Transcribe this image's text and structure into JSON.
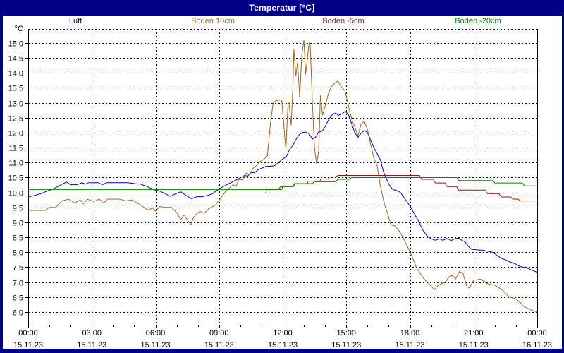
{
  "window": {
    "title": "Temperatur [°C]"
  },
  "chart_data": {
    "type": "line",
    "title": "Temperatur [°C]",
    "ylabel": "°C",
    "grid": "dashed",
    "legend_position": "top",
    "ylim": [
      5.58,
      15.47
    ],
    "xlim_hours": [
      0,
      24
    ],
    "y_tick_labels": [
      "15,0",
      "14,5",
      "14,0",
      "13,5",
      "13,0",
      "12,5",
      "12,0",
      "11,5",
      "11,0",
      "10,5",
      "10,0",
      "9,5",
      "9,0",
      "8,5",
      "8,0",
      "7,5",
      "7,0",
      "6,5",
      "6,0"
    ],
    "x_ticks": [
      {
        "t": 0,
        "time": "00:00",
        "date": "15.11.23"
      },
      {
        "t": 3,
        "time": "03:00",
        "date": "15.11.23"
      },
      {
        "t": 6,
        "time": "06:00",
        "date": "15.11.23"
      },
      {
        "t": 9,
        "time": "09:00",
        "date": "15.11.23"
      },
      {
        "t": 12,
        "time": "12:00",
        "date": "15.11.23"
      },
      {
        "t": 15,
        "time": "15:00",
        "date": "15.11.23"
      },
      {
        "t": 18,
        "time": "18:00",
        "date": "15.11.23"
      },
      {
        "t": 21,
        "time": "21:00",
        "date": "15.11.23"
      },
      {
        "t": 24,
        "time": "00:00",
        "date": "16.11.23"
      }
    ],
    "series": [
      {
        "name": "Luft",
        "color": "#0000D0",
        "points": [
          [
            0,
            9.85
          ],
          [
            0.3,
            9.9
          ],
          [
            0.6,
            9.96
          ],
          [
            0.9,
            10.05
          ],
          [
            1.1,
            10.1
          ],
          [
            1.4,
            10.2
          ],
          [
            1.6,
            10.28
          ],
          [
            1.8,
            10.35
          ],
          [
            2,
            10.26
          ],
          [
            2.3,
            10.26
          ],
          [
            2.55,
            10.33
          ],
          [
            2.7,
            10.28
          ],
          [
            2.85,
            10.33
          ],
          [
            3.3,
            10.33
          ],
          [
            3.5,
            10.26
          ],
          [
            3.7,
            10.33
          ],
          [
            4.7,
            10.33
          ],
          [
            5,
            10.3
          ],
          [
            5.3,
            10.28
          ],
          [
            5.6,
            10.2
          ],
          [
            5.9,
            10.1
          ],
          [
            6.2,
            10.05
          ],
          [
            6.5,
            9.95
          ],
          [
            6.7,
            9.87
          ],
          [
            7,
            9.97
          ],
          [
            7.2,
            10.02
          ],
          [
            7.45,
            9.9
          ],
          [
            7.7,
            9.79
          ],
          [
            7.95,
            9.86
          ],
          [
            8.2,
            9.86
          ],
          [
            8.45,
            9.9
          ],
          [
            8.67,
            9.95
          ],
          [
            9,
            10.12
          ],
          [
            9.33,
            10.25
          ],
          [
            9.67,
            10.37
          ],
          [
            10,
            10.49
          ],
          [
            10.2,
            10.57
          ],
          [
            10.35,
            10.55
          ],
          [
            10.5,
            10.67
          ],
          [
            10.67,
            10.66
          ],
          [
            10.85,
            10.77
          ],
          [
            11,
            10.81
          ],
          [
            11.2,
            10.87
          ],
          [
            11.6,
            10.89
          ],
          [
            11.8,
            11
          ],
          [
            12,
            11.12
          ],
          [
            12.17,
            11.2
          ],
          [
            12.33,
            11.44
          ],
          [
            12.5,
            11.6
          ],
          [
            12.67,
            11.83
          ],
          [
            12.8,
            11.95
          ],
          [
            12.95,
            12.01
          ],
          [
            13.1,
            12.02
          ],
          [
            13.25,
            11.96
          ],
          [
            13.4,
            11.79
          ],
          [
            13.55,
            11.85
          ],
          [
            13.7,
            12.03
          ],
          [
            13.85,
            12.05
          ],
          [
            14,
            12.2
          ],
          [
            14.15,
            12.42
          ],
          [
            14.35,
            12.62
          ],
          [
            14.5,
            12.66
          ],
          [
            14.62,
            12.58
          ],
          [
            14.8,
            12.63
          ],
          [
            14.95,
            12.72
          ],
          [
            15.1,
            12.6
          ],
          [
            15.25,
            12.3
          ],
          [
            15.4,
            12
          ],
          [
            15.55,
            11.85
          ],
          [
            15.7,
            11.98
          ],
          [
            15.85,
            12.08
          ],
          [
            16,
            12
          ],
          [
            16.15,
            11.75
          ],
          [
            16.3,
            11.5
          ],
          [
            16.45,
            11.3
          ],
          [
            16.6,
            11.1
          ],
          [
            16.75,
            10.7
          ],
          [
            16.9,
            10.44
          ],
          [
            17.05,
            10.22
          ],
          [
            17.2,
            10.1
          ],
          [
            17.4,
            10.06
          ],
          [
            17.55,
            10
          ],
          [
            17.7,
            9.85
          ],
          [
            17.85,
            9.7
          ],
          [
            18,
            9.55
          ],
          [
            18.2,
            9.3
          ],
          [
            18.4,
            9.05
          ],
          [
            18.6,
            8.75
          ],
          [
            18.8,
            8.55
          ],
          [
            19,
            8.45
          ],
          [
            19.2,
            8.4
          ],
          [
            19.4,
            8.45
          ],
          [
            19.55,
            8.4
          ],
          [
            19.75,
            8.46
          ],
          [
            19.95,
            8.4
          ],
          [
            20.15,
            8.46
          ],
          [
            20.3,
            8.47
          ],
          [
            20.45,
            8.4
          ],
          [
            20.6,
            8.35
          ],
          [
            20.75,
            8.2
          ],
          [
            20.9,
            8.1
          ],
          [
            21.2,
            8.08
          ],
          [
            21.5,
            8.06
          ],
          [
            21.9,
            8
          ],
          [
            22.1,
            7.9
          ],
          [
            22.3,
            7.8
          ],
          [
            22.5,
            7.75
          ],
          [
            22.7,
            7.68
          ],
          [
            23,
            7.6
          ],
          [
            23.2,
            7.52
          ],
          [
            23.5,
            7.48
          ],
          [
            23.7,
            7.42
          ],
          [
            24,
            7.33
          ]
        ]
      },
      {
        "name": "Boden 10cm",
        "color": "#9C6428",
        "points": [
          [
            0,
            9.4
          ],
          [
            0.8,
            9.4
          ],
          [
            0.9,
            9.45
          ],
          [
            1,
            9.5
          ],
          [
            1.3,
            9.5
          ],
          [
            1.6,
            9.72
          ],
          [
            1.9,
            9.78
          ],
          [
            2.2,
            9.65
          ],
          [
            2.45,
            9.75
          ],
          [
            2.6,
            9.62
          ],
          [
            2.8,
            9.77
          ],
          [
            3.1,
            9.7
          ],
          [
            3.35,
            9.78
          ],
          [
            3.55,
            9.65
          ],
          [
            3.75,
            9.78
          ],
          [
            4.3,
            9.78
          ],
          [
            4.6,
            9.72
          ],
          [
            4.9,
            9.75
          ],
          [
            5.15,
            9.65
          ],
          [
            5.35,
            9.56
          ],
          [
            5.55,
            9.45
          ],
          [
            5.7,
            9.41
          ],
          [
            5.85,
            9.49
          ],
          [
            6,
            9.37
          ],
          [
            6.2,
            9.53
          ],
          [
            6.45,
            9.5
          ],
          [
            6.75,
            9.5
          ],
          [
            7,
            9.33
          ],
          [
            7.2,
            9.09
          ],
          [
            7.35,
            9.25
          ],
          [
            7.5,
            9.09
          ],
          [
            7.67,
            8.93
          ],
          [
            7.8,
            9.17
          ],
          [
            7.95,
            9.29
          ],
          [
            8.1,
            9.37
          ],
          [
            8.3,
            9.3
          ],
          [
            8.5,
            9.45
          ],
          [
            8.83,
            9.58
          ],
          [
            9.17,
            9.9
          ],
          [
            9.33,
            10.06
          ],
          [
            9.67,
            10.26
          ],
          [
            9.8,
            10.2
          ],
          [
            9.94,
            10.45
          ],
          [
            10.1,
            10.42
          ],
          [
            10.28,
            10.65
          ],
          [
            10.45,
            10.6
          ],
          [
            10.6,
            10.81
          ],
          [
            10.8,
            10.92
          ],
          [
            10.94,
            11.04
          ],
          [
            11.1,
            11.1
          ],
          [
            11.28,
            11.23
          ],
          [
            11.42,
            12.3
          ],
          [
            11.55,
            13
          ],
          [
            11.67,
            13.07
          ],
          [
            11.95,
            13.1
          ],
          [
            12.05,
            12.3
          ],
          [
            12.15,
            11.43
          ],
          [
            12.25,
            12.95
          ],
          [
            12.3,
            13
          ],
          [
            12.4,
            12.25
          ],
          [
            12.48,
            13.5
          ],
          [
            12.53,
            14.8
          ],
          [
            12.62,
            13.9
          ],
          [
            12.7,
            14.35
          ],
          [
            12.8,
            13.2
          ],
          [
            12.9,
            14.6
          ],
          [
            13,
            15.1
          ],
          [
            13.08,
            13.95
          ],
          [
            13.15,
            14.4
          ],
          [
            13.25,
            15.05
          ],
          [
            13.3,
            14.9
          ],
          [
            13.4,
            13
          ],
          [
            13.5,
            11.5
          ],
          [
            13.6,
            10.95
          ],
          [
            13.7,
            11.4
          ],
          [
            13.78,
            13.25
          ],
          [
            13.88,
            12.58
          ],
          [
            14,
            12.9
          ],
          [
            14.15,
            13.3
          ],
          [
            14.3,
            13.55
          ],
          [
            14.45,
            13.65
          ],
          [
            14.6,
            13.73
          ],
          [
            14.8,
            13.5
          ],
          [
            14.93,
            13.42
          ],
          [
            15.1,
            12.9
          ],
          [
            15.27,
            12.4
          ],
          [
            15.42,
            12.15
          ],
          [
            15.55,
            11.9
          ],
          [
            15.7,
            12.3
          ],
          [
            15.85,
            12.38
          ],
          [
            16,
            12.1
          ],
          [
            16.15,
            11.6
          ],
          [
            16.3,
            11.15
          ],
          [
            16.45,
            10.9
          ],
          [
            16.6,
            10.24
          ],
          [
            16.8,
            9.6
          ],
          [
            16.95,
            9.3
          ],
          [
            17.1,
            8.92
          ],
          [
            17.3,
            8.88
          ],
          [
            17.5,
            8.7
          ],
          [
            17.67,
            8.5
          ],
          [
            18,
            8.02
          ],
          [
            18.33,
            7.46
          ],
          [
            18.67,
            7.1
          ],
          [
            19,
            6.87
          ],
          [
            19.15,
            6.75
          ],
          [
            19.33,
            6.9
          ],
          [
            19.67,
            7
          ],
          [
            19.85,
            7.18
          ],
          [
            20,
            7.23
          ],
          [
            20.15,
            7.1
          ],
          [
            20.33,
            7.35
          ],
          [
            20.5,
            7.3
          ],
          [
            20.67,
            6.87
          ],
          [
            20.8,
            6.8
          ],
          [
            21,
            7.06
          ],
          [
            21.33,
            7.1
          ],
          [
            21.67,
            6.94
          ],
          [
            22,
            6.9
          ],
          [
            22.33,
            6.75
          ],
          [
            22.67,
            6.51
          ],
          [
            23,
            6.44
          ],
          [
            23.2,
            6.32
          ],
          [
            23.33,
            6.2
          ],
          [
            23.67,
            6.08
          ],
          [
            24,
            6
          ]
        ]
      },
      {
        "name": "Boden -5cm",
        "color": "#8B1A1A",
        "points": [
          [
            0,
            9.98
          ],
          [
            11.2,
            9.98
          ],
          [
            11.25,
            10.1
          ],
          [
            11.95,
            10.1
          ],
          [
            12,
            10.2
          ],
          [
            12.5,
            10.2
          ],
          [
            12.55,
            10.3
          ],
          [
            13.15,
            10.3
          ],
          [
            13.2,
            10.38
          ],
          [
            13.75,
            10.38
          ],
          [
            13.8,
            10.45
          ],
          [
            14.15,
            10.45
          ],
          [
            14.2,
            10.52
          ],
          [
            14.5,
            10.52
          ],
          [
            14.6,
            10.57
          ],
          [
            18.45,
            10.57
          ],
          [
            18.55,
            10.44
          ],
          [
            19.1,
            10.44
          ],
          [
            19.2,
            10.32
          ],
          [
            19.65,
            10.32
          ],
          [
            19.75,
            10.2
          ],
          [
            20.2,
            10.2
          ],
          [
            20.3,
            10.08
          ],
          [
            21.55,
            10.08
          ],
          [
            21.65,
            9.96
          ],
          [
            22.2,
            9.96
          ],
          [
            22.3,
            9.85
          ],
          [
            22.75,
            9.85
          ],
          [
            22.85,
            9.78
          ],
          [
            23.1,
            9.78
          ],
          [
            23.2,
            9.72
          ],
          [
            24,
            9.72
          ]
        ]
      },
      {
        "name": "Boden -20cm",
        "color": "#008000",
        "points": [
          [
            0,
            10.1
          ],
          [
            11.8,
            10.1
          ],
          [
            11.9,
            10.2
          ],
          [
            12.5,
            10.2
          ],
          [
            12.6,
            10.3
          ],
          [
            13.4,
            10.3
          ],
          [
            13.5,
            10.36
          ],
          [
            14.5,
            10.36
          ],
          [
            14.6,
            10.44
          ],
          [
            15.15,
            10.44
          ],
          [
            15.25,
            10.5
          ],
          [
            20.2,
            10.5
          ],
          [
            20.3,
            10.4
          ],
          [
            21.9,
            10.4
          ],
          [
            22,
            10.32
          ],
          [
            23.3,
            10.32
          ],
          [
            23.4,
            10.22
          ],
          [
            24,
            10.22
          ]
        ]
      }
    ]
  },
  "colors": {
    "titlebar": "#000087",
    "frame": "#000000",
    "grid": "#000000",
    "tick_text": "#000000"
  }
}
